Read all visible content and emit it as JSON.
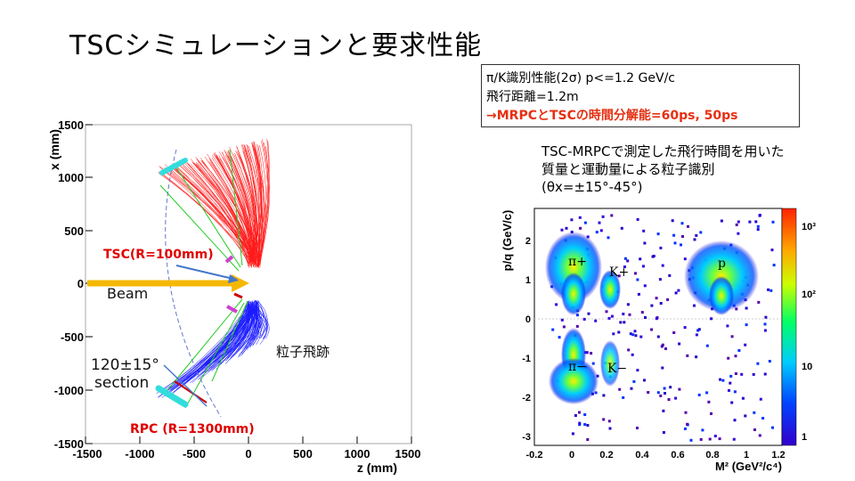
{
  "slide": {
    "title": "TSCシミュレーションと要求性能"
  },
  "info_box": {
    "line1": "π/K識別性能(2σ) p<=1.2 GeV/c",
    "line2": "飛行距離=1.2m",
    "line3": "→MRPCとTSCの時間分解能=60ps, 50ps"
  },
  "pid_note": {
    "line1": "TSC-MRPCで測定した飛行時間を用いた",
    "line2": "質量と運動量による粒子識別",
    "line3": "(θx=±15°-45°)"
  },
  "simulation_plot": {
    "ylabel": "x (mm)",
    "xlabel": "z (mm)",
    "yticks": [
      "1500",
      "1000",
      "500",
      "0",
      "-500",
      "-1000",
      "-1500"
    ],
    "xticks": [
      "-1500",
      "-1000",
      "-500",
      "0",
      "500",
      "1000",
      "1500"
    ],
    "labels": {
      "tsc": "TSC(R=100mm)",
      "beam": "Beam",
      "section_line1": "120±15°",
      "section_line2": "section",
      "rpc": "RPC (R=1300mm)",
      "tracks": "粒子飛跡"
    },
    "colors": {
      "upper_tracks": "#ff1a1a",
      "lower_tracks": "#1a1aff",
      "beam": "#f5b800",
      "green": "#22cc22",
      "rpc_hits": "#33dddd",
      "tsc_hits": "#d040d0"
    }
  },
  "pid_plot": {
    "ylabel": "p/q (GeV/c)",
    "xlabel": "M² (GeV²/c⁴)",
    "xticks": [
      "-0.2",
      "0",
      "0.2",
      "0.4",
      "0.6",
      "0.8",
      "1",
      "1.2"
    ],
    "yticks": [
      "2",
      "1",
      "0",
      "-1",
      "-2",
      "-3"
    ],
    "colorbar_ticks": [
      "10³",
      "10²",
      "10",
      "1"
    ],
    "particles": {
      "pi_plus": "π+",
      "k_plus": "K+",
      "proton": "p",
      "pi_minus": "π−",
      "k_minus": "K−"
    }
  }
}
